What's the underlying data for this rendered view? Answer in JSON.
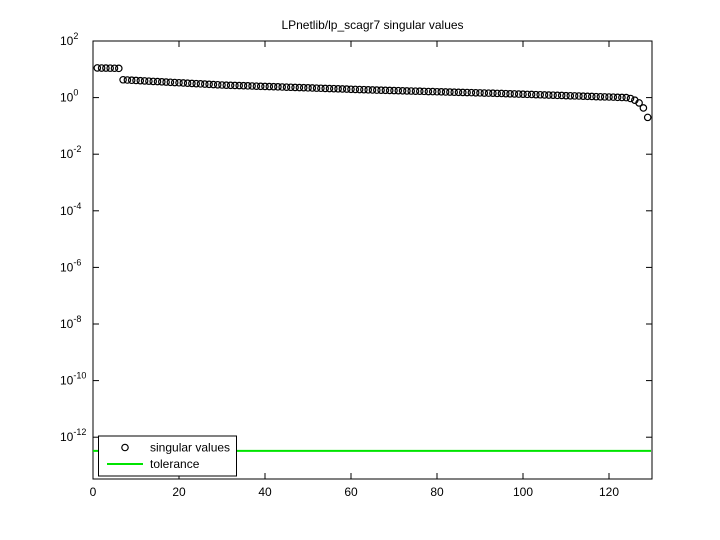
{
  "chart_data": {
    "type": "scatter",
    "title": "LPnetlib/lp_scagr7 singular values",
    "xlabel": "",
    "ylabel": "",
    "y_scale": "log",
    "grid": false,
    "xlim": [
      0,
      130
    ],
    "x_ticks": [
      0,
      20,
      40,
      60,
      80,
      100,
      120
    ],
    "y_tick_exponents": [
      2,
      0,
      -2,
      -4,
      -6,
      -8,
      -10,
      -12
    ],
    "ylim_top_exponent": 2,
    "legend": {
      "position": "southwest",
      "entries": [
        {
          "label": "singular values",
          "marker": "circle",
          "color": "#000000"
        },
        {
          "label": "tolerance",
          "marker": "line",
          "color": "#00e400"
        }
      ]
    },
    "series": [
      {
        "name": "singular values",
        "type": "scatter",
        "marker": "o",
        "color": "#000000",
        "x_start": 1,
        "values": [
          11.2,
          11.1,
          11.05,
          11.0,
          10.9,
          10.8,
          4.27,
          4.19,
          4.11,
          4.03,
          3.96,
          3.89,
          3.82,
          3.74,
          3.68,
          3.61,
          3.54,
          3.48,
          3.41,
          3.35,
          3.29,
          3.23,
          3.17,
          3.11,
          3.06,
          3.0,
          2.95,
          2.89,
          2.84,
          2.79,
          2.75,
          2.72,
          2.69,
          2.66,
          2.63,
          2.6,
          2.57,
          2.54,
          2.51,
          2.48,
          2.45,
          2.43,
          2.4,
          2.37,
          2.34,
          2.32,
          2.29,
          2.26,
          2.24,
          2.21,
          2.19,
          2.16,
          2.14,
          2.11,
          2.09,
          2.07,
          2.04,
          2.02,
          2.0,
          1.97,
          1.95,
          1.93,
          1.91,
          1.88,
          1.86,
          1.84,
          1.83,
          1.81,
          1.79,
          1.77,
          1.76,
          1.74,
          1.72,
          1.71,
          1.69,
          1.68,
          1.66,
          1.64,
          1.63,
          1.61,
          1.6,
          1.58,
          1.57,
          1.55,
          1.54,
          1.52,
          1.51,
          1.5,
          1.48,
          1.47,
          1.45,
          1.44,
          1.43,
          1.41,
          1.4,
          1.38,
          1.36,
          1.35,
          1.33,
          1.32,
          1.3,
          1.29,
          1.27,
          1.26,
          1.24,
          1.23,
          1.22,
          1.2,
          1.19,
          1.17,
          1.16,
          1.15,
          1.14,
          1.12,
          1.11,
          1.1,
          1.08,
          1.07,
          1.06,
          1.05,
          1.04,
          1.02,
          1.01,
          1.0,
          0.93,
          0.81,
          0.65,
          0.43,
          0.2
        ]
      },
      {
        "name": "tolerance",
        "type": "hline",
        "color": "#00e400",
        "value": 3.3e-13
      }
    ]
  }
}
